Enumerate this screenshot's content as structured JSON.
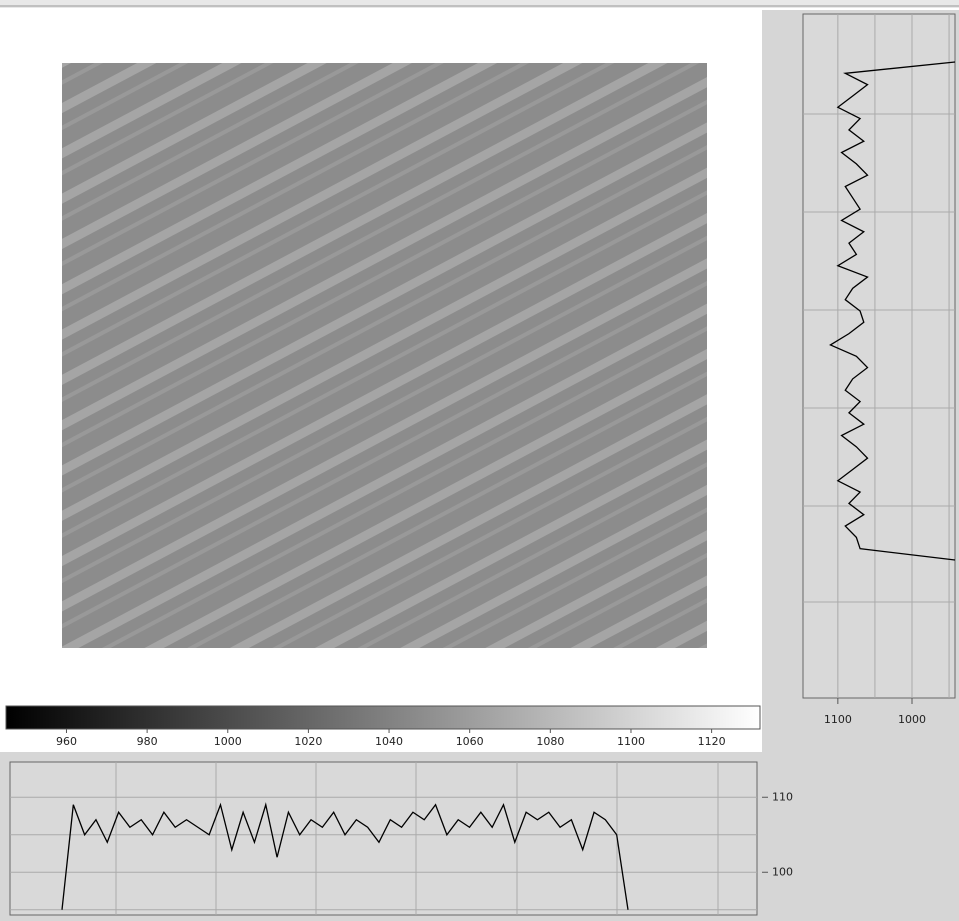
{
  "colorbar": {
    "clim": [
      945,
      1132
    ],
    "ticks": [
      960,
      980,
      1000,
      1020,
      1040,
      1060,
      1080,
      1100,
      1120
    ]
  },
  "right_profile": {
    "xlim": [
      1147,
      942
    ],
    "xticks": [
      1100,
      1000
    ],
    "xgrid": [
      1100,
      1050,
      1000,
      950
    ],
    "values": [
      942,
      1090,
      1060,
      1080,
      1100,
      1070,
      1085,
      1065,
      1095,
      1075,
      1060,
      1090,
      1080,
      1070,
      1095,
      1065,
      1085,
      1075,
      1100,
      1060,
      1080,
      1090,
      1070,
      1065,
      1085,
      1110,
      1075,
      1060,
      1080,
      1090,
      1070,
      1085,
      1065,
      1095,
      1075,
      1060,
      1080,
      1100,
      1070,
      1085,
      1065,
      1090,
      1075,
      1070,
      942
    ]
  },
  "bottom_profile": {
    "ylim": [
      94.3,
      114.7
    ],
    "yticks": [
      110,
      100
    ],
    "ygrid": [
      110,
      105,
      100,
      95
    ],
    "values": [
      95,
      109,
      105,
      107,
      104,
      108,
      106,
      107,
      105,
      108,
      106,
      107,
      106,
      105,
      109,
      103,
      108,
      104,
      109,
      102,
      108,
      105,
      107,
      106,
      108,
      105,
      107,
      106,
      104,
      107,
      106,
      108,
      107,
      109,
      105,
      107,
      106,
      108,
      106,
      109,
      104,
      108,
      107,
      108,
      106,
      107,
      103,
      108,
      107,
      105,
      95
    ]
  }
}
